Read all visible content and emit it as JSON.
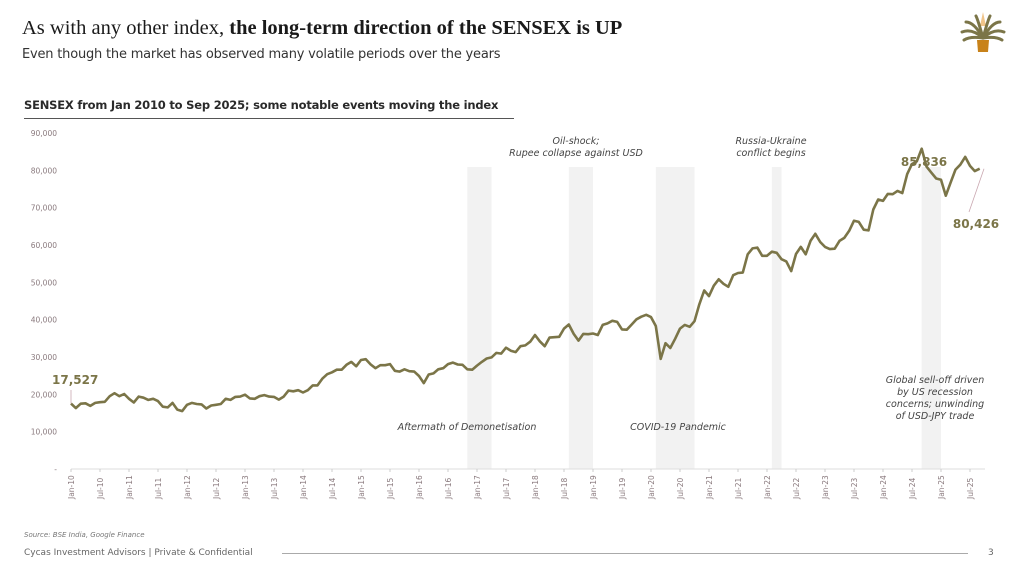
{
  "header": {
    "title_plain": "As with any other index, ",
    "title_bold": "the long-term direction of the SENSEX is UP",
    "subtitle": "Even though the market has observed many volatile periods over the years",
    "logo_icon": "cycas-palm-logo-icon"
  },
  "colors": {
    "line": "#7b7548",
    "band": "#f2f2f2",
    "axis_text": "#8a7a7e",
    "annotation_text": "#444444",
    "callout_text": "#7b7548"
  },
  "chart_data": {
    "type": "line",
    "title": "SENSEX from Jan 2010 to Sep 2025; some notable events moving the index",
    "xlabel": "",
    "ylabel": "",
    "ylim": [
      0,
      90000
    ],
    "yticks": [
      0,
      10000,
      20000,
      30000,
      40000,
      50000,
      60000,
      70000,
      80000,
      90000
    ],
    "ytick_labels": [
      "-",
      "10,000",
      "20,000",
      "30,000",
      "40,000",
      "50,000",
      "60,000",
      "70,000",
      "80,000",
      "90,000"
    ],
    "xtick_labels": [
      "Jan-10",
      "Jul-10",
      "Jan-11",
      "Jul-11",
      "Jan-12",
      "Jul-12",
      "Jan-13",
      "Jul-13",
      "Jan-14",
      "Jul-14",
      "Jan-15",
      "Jul-15",
      "Jan-16",
      "Jul-16",
      "Jan-17",
      "Jul-17",
      "Jan-18",
      "Jul-18",
      "Jan-19",
      "Jul-19",
      "Jan-20",
      "Jul-20",
      "Jan-21",
      "Jul-21",
      "Jan-22",
      "Jul-22",
      "Jan-23",
      "Jul-23",
      "Jan-24",
      "Jul-24",
      "Jan-25",
      "Jul-25"
    ],
    "grid": false,
    "legend": "none",
    "x_start": "2010-01",
    "x_step": "month",
    "series": [
      {
        "name": "SENSEX",
        "values": [
          17527,
          16300,
          17500,
          17600,
          16900,
          17700,
          17900,
          18000,
          19500,
          20300,
          19500,
          20100,
          18800,
          17800,
          19400,
          19100,
          18500,
          18800,
          18200,
          16700,
          16500,
          17700,
          15900,
          15500,
          17200,
          17700,
          17400,
          17300,
          16200,
          17000,
          17200,
          17400,
          18800,
          18500,
          19300,
          19400,
          19900,
          18900,
          18800,
          19500,
          19800,
          19400,
          19300,
          18600,
          19400,
          21000,
          20800,
          21100,
          20500,
          21100,
          22400,
          22400,
          24200,
          25400,
          25900,
          26600,
          26600,
          27900,
          28700,
          27500,
          29200,
          29400,
          28000,
          27000,
          27800,
          27800,
          28100,
          26300,
          26100,
          26700,
          26200,
          26100,
          24900,
          23000,
          25300,
          25600,
          26700,
          27000,
          28100,
          28500,
          28000,
          27900,
          26700,
          26600,
          27700,
          28700,
          29600,
          29900,
          31100,
          30900,
          32500,
          31700,
          31300,
          32900,
          33100,
          34100,
          35900,
          34200,
          32900,
          35200,
          35300,
          35400,
          37600,
          38700,
          36200,
          34400,
          36200,
          36100,
          36300,
          35900,
          38600,
          39000,
          39700,
          39400,
          37400,
          37300,
          38700,
          40100,
          40800,
          41300,
          40700,
          38300,
          29500,
          33700,
          32400,
          34900,
          37600,
          38600,
          38100,
          39600,
          44100,
          47800,
          46300,
          49100,
          50800,
          49600,
          48800,
          51900,
          52500,
          52600,
          57500,
          59100,
          59300,
          57100,
          57100,
          58200,
          57900,
          56200,
          55600,
          53000,
          57600,
          59500,
          57500,
          61100,
          63000,
          60800,
          59500,
          58900,
          59000,
          61100,
          61900,
          63800,
          66500,
          66200,
          64100,
          63900,
          69500,
          72200,
          71800,
          73700,
          73600,
          74500,
          73900,
          79000,
          81700,
          82400,
          85800,
          81000,
          79400,
          77800,
          77500,
          73200,
          76800,
          80200,
          81500,
          83600,
          81200,
          79800,
          80426
        ]
      }
    ],
    "callouts": [
      {
        "label": "17,527",
        "value": 17527,
        "date": "2010-01"
      },
      {
        "label": "85,836",
        "value": 85836,
        "date": "2024-09"
      },
      {
        "label": "80,426",
        "value": 80426,
        "date": "2025-09"
      }
    ],
    "events": [
      {
        "label": "Aftermath of Demonetisation",
        "start": "2016-11",
        "end": "2017-03"
      },
      {
        "label": "Oil-shock;\nRupee collapse against USD",
        "start": "2018-08",
        "end": "2018-12"
      },
      {
        "label": "COVID-19 Pandemic",
        "start": "2020-02",
        "end": "2020-09"
      },
      {
        "label": "Russia-Ukraine\nconflict begins",
        "start": "2022-02",
        "end": "2022-03"
      },
      {
        "label": "Global sell-off driven\nby US recession\nconcerns; unwinding\nof USD-JPY trade",
        "start": "2024-09",
        "end": "2024-12"
      }
    ]
  },
  "footer": {
    "source": "Source: BSE India, Google Finance",
    "company": "Cycas Investment Advisors | Private & Confidential",
    "page_number": "3"
  }
}
